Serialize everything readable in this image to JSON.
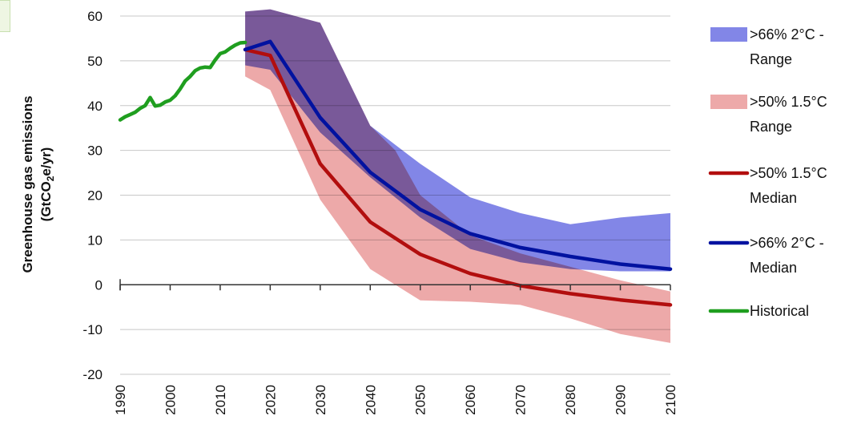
{
  "chart_data": {
    "type": "area",
    "ylabel_line1": "Greenhouse gas emissions",
    "ylabel_line2_prefix": "(GtCO",
    "ylabel_line2_sub": "2",
    "ylabel_line2_suffix": "e/yr)",
    "xlim": [
      1990,
      2100
    ],
    "ylim": [
      -20,
      60
    ],
    "grid": true,
    "legend_position": "right",
    "x_ticks": [
      1990,
      2000,
      2010,
      2020,
      2030,
      2040,
      2050,
      2060,
      2070,
      2080,
      2090,
      2100
    ],
    "x_tick_labels": [
      "1990",
      "2000",
      "2010",
      "2020",
      "2030",
      "2040",
      "2050",
      "2060",
      "2070",
      "2080",
      "2090",
      "2100"
    ],
    "y_ticks": [
      -20,
      -10,
      0,
      10,
      20,
      30,
      40,
      50,
      60
    ],
    "y_tick_labels": [
      "-20",
      "-10",
      "0",
      "10",
      "20",
      "30",
      "40",
      "50",
      "60"
    ],
    "series": [
      {
        "name": ">66% 2°C - Range",
        "kind": "band",
        "color": "#7b7fe6",
        "x": [
          2015,
          2020,
          2030,
          2040,
          2050,
          2060,
          2070,
          2080,
          2090,
          2100
        ],
        "upper": [
          61,
          61.5,
          58.5,
          35.5,
          27,
          19.5,
          16,
          13.5,
          15,
          16
        ],
        "lower": [
          49,
          48,
          34,
          24,
          15,
          8,
          5,
          3.5,
          3,
          3
        ]
      },
      {
        "name": ">50% 1.5°C Range",
        "kind": "band",
        "color": "#e58585",
        "x": [
          2015,
          2020,
          2030,
          2040,
          2045,
          2050,
          2060,
          2070,
          2080,
          2090,
          2100
        ],
        "upper": [
          61,
          61.5,
          58.5,
          35.5,
          30,
          20,
          11,
          7,
          4,
          1,
          -1.5
        ],
        "lower": [
          46.5,
          43.5,
          19,
          3.5,
          0,
          -3.5,
          -3.8,
          -4.5,
          -7.5,
          -11,
          -13
        ]
      },
      {
        "name": ">50% 1.5°C Median",
        "kind": "line",
        "color": "#b20e0e",
        "x": [
          2015,
          2020,
          2030,
          2040,
          2050,
          2060,
          2070,
          2080,
          2090,
          2100
        ],
        "values": [
          52.5,
          51.2,
          27,
          14,
          6.8,
          2.5,
          -0.2,
          -2,
          -3.4,
          -4.5
        ]
      },
      {
        "name": ">66% 2°C - Median",
        "kind": "line",
        "color": "#0012a0",
        "x": [
          2015,
          2020,
          2030,
          2040,
          2050,
          2060,
          2070,
          2080,
          2090,
          2100
        ],
        "values": [
          52.5,
          54.3,
          37.3,
          25.1,
          16.8,
          11.4,
          8.3,
          6.3,
          4.6,
          3.5
        ]
      },
      {
        "name": "Historical",
        "kind": "line",
        "color": "#1f9e1f",
        "x": [
          1990,
          1991,
          1992,
          1993,
          1994,
          1995,
          1996,
          1997,
          1998,
          1999,
          2000,
          2001,
          2002,
          2003,
          2004,
          2005,
          2006,
          2007,
          2008,
          2009,
          2010,
          2011,
          2012,
          2013,
          2014,
          2015
        ],
        "values": [
          36.8,
          37.5,
          38,
          38.5,
          39.4,
          40,
          41.8,
          39.9,
          40.1,
          40.8,
          41.2,
          42.2,
          43.7,
          45.5,
          46.5,
          47.8,
          48.4,
          48.6,
          48.5,
          50.2,
          51.6,
          52,
          52.8,
          53.5,
          54,
          54.1
        ]
      }
    ],
    "legend": [
      {
        "series": 0,
        "line1": ">66% 2°C -",
        "line2": "Range"
      },
      {
        "series": 1,
        "line1": ">50% 1.5°C",
        "line2": "Range"
      },
      {
        "series": 2,
        "line1": ">50% 1.5°C",
        "line2": "Median"
      },
      {
        "series": 3,
        "line1": ">66% 2°C -",
        "line2": "Median"
      },
      {
        "series": 4,
        "line1": "Historical",
        "line2": ""
      }
    ]
  }
}
